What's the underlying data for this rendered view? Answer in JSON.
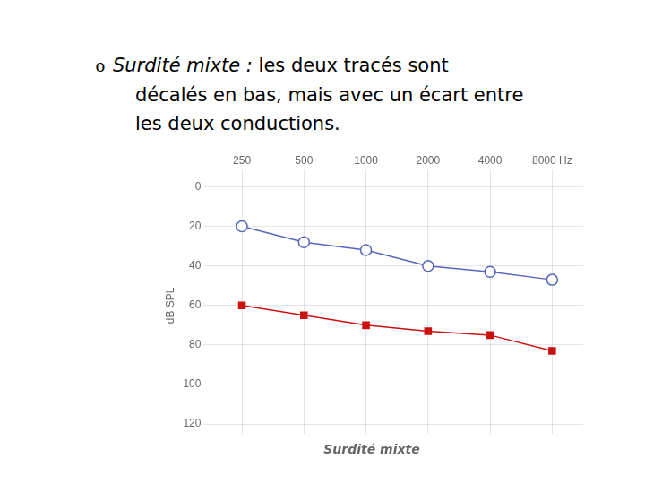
{
  "chart_data": {
    "type": "line",
    "xlabel": "Surdité mixte",
    "ylabel": "dB SPL",
    "annotations": [
      "o",
      "Surdité mixte : ",
      "les deux tracés sont",
      "décalés en bas, mais avec un écart entre",
      "les deux conductions."
    ],
    "categories": [
      "250",
      "500",
      "1000",
      "2000",
      "4000",
      "8000 Hz"
    ],
    "series": [
      {
        "color": "#5566bb",
        "marker": "circle",
        "values": [
          20,
          28,
          32,
          40,
          43,
          47
        ]
      },
      {
        "color": "#cc1111",
        "marker": "square",
        "values": [
          60,
          65,
          70,
          73,
          75,
          83
        ]
      }
    ],
    "ylim": [
      125,
      -5
    ],
    "yticks": [
      0,
      20,
      40,
      60,
      80,
      100,
      120
    ],
    "grid": true
  }
}
